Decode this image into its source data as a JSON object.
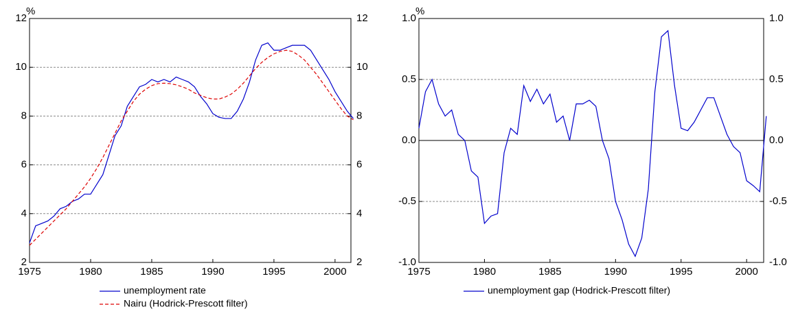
{
  "chart_data": [
    {
      "type": "line",
      "y_label": "%",
      "x": [
        1975,
        1975.5,
        1976,
        1976.5,
        1977,
        1977.5,
        1978,
        1978.5,
        1979,
        1979.5,
        1980,
        1980.5,
        1981,
        1981.5,
        1982,
        1982.5,
        1983,
        1983.5,
        1984,
        1984.5,
        1985,
        1985.5,
        1986,
        1986.5,
        1987,
        1987.5,
        1988,
        1988.5,
        1989,
        1989.5,
        1990,
        1990.5,
        1991,
        1991.5,
        1992,
        1992.5,
        1993,
        1993.5,
        1994,
        1994.5,
        1995,
        1995.5,
        1996,
        1996.5,
        1997,
        1997.5,
        1998,
        1998.5,
        1999,
        1999.5,
        2000,
        2000.5,
        2001,
        2001.5
      ],
      "series": [
        {
          "name": "unemployment rate",
          "color": "#0000cc",
          "line_style": "solid",
          "values": [
            2.8,
            3.5,
            3.6,
            3.7,
            3.9,
            4.2,
            4.3,
            4.5,
            4.6,
            4.8,
            4.8,
            5.2,
            5.6,
            6.4,
            7.2,
            7.6,
            8.4,
            8.8,
            9.2,
            9.3,
            9.5,
            9.4,
            9.5,
            9.4,
            9.6,
            9.5,
            9.4,
            9.2,
            8.8,
            8.5,
            8.1,
            7.95,
            7.9,
            7.9,
            8.2,
            8.7,
            9.4,
            10.3,
            10.9,
            11.0,
            10.7,
            10.7,
            10.8,
            10.9,
            10.9,
            10.9,
            10.7,
            10.3,
            9.9,
            9.5,
            9.0,
            8.6,
            8.2,
            7.9
          ]
        },
        {
          "name": "Nairu (Hodrick-Prescott filter)",
          "color": "#dd0000",
          "line_style": "dashed",
          "values": [
            2.7,
            2.95,
            3.2,
            3.45,
            3.7,
            3.95,
            4.2,
            4.5,
            4.8,
            5.1,
            5.45,
            5.85,
            6.3,
            6.8,
            7.3,
            7.8,
            8.2,
            8.6,
            8.9,
            9.1,
            9.25,
            9.33,
            9.35,
            9.33,
            9.28,
            9.2,
            9.1,
            8.95,
            8.85,
            8.75,
            8.7,
            8.7,
            8.78,
            8.9,
            9.1,
            9.35,
            9.65,
            9.95,
            10.2,
            10.4,
            10.55,
            10.65,
            10.7,
            10.65,
            10.5,
            10.3,
            10.0,
            9.7,
            9.35,
            9.0,
            8.65,
            8.3,
            8.0,
            7.85
          ]
        }
      ],
      "xlim": [
        1975,
        2001.3
      ],
      "xticks": [
        1975,
        1980,
        1985,
        1990,
        1995,
        2000
      ],
      "ylim": [
        2,
        12
      ],
      "yticks": [
        2,
        4,
        6,
        8,
        10,
        12
      ],
      "grid": true,
      "zero_line": false
    },
    {
      "type": "line",
      "y_label": "%",
      "x": [
        1975,
        1975.5,
        1976,
        1976.5,
        1977,
        1977.5,
        1978,
        1978.5,
        1979,
        1979.5,
        1980,
        1980.5,
        1981,
        1981.5,
        1982,
        1982.5,
        1983,
        1983.5,
        1984,
        1984.5,
        1985,
        1985.5,
        1986,
        1986.5,
        1987,
        1987.5,
        1988,
        1988.5,
        1989,
        1989.5,
        1990,
        1990.5,
        1991,
        1991.5,
        1992,
        1992.5,
        1993,
        1993.5,
        1994,
        1994.5,
        1995,
        1995.5,
        1996,
        1996.5,
        1997,
        1997.5,
        1998,
        1998.5,
        1999,
        1999.5,
        2000,
        2000.5,
        2001,
        2001.5
      ],
      "series": [
        {
          "name": "unemployment gap (Hodrick-Prescott filter)",
          "color": "#0000cc",
          "line_style": "solid",
          "values": [
            0.1,
            0.4,
            0.5,
            0.3,
            0.2,
            0.25,
            0.05,
            0.0,
            -0.25,
            -0.3,
            -0.68,
            -0.62,
            -0.6,
            -0.1,
            0.1,
            0.05,
            0.45,
            0.32,
            0.42,
            0.3,
            0.38,
            0.15,
            0.2,
            0.0,
            0.3,
            0.3,
            0.33,
            0.28,
            0.0,
            -0.15,
            -0.5,
            -0.65,
            -0.85,
            -0.95,
            -0.8,
            -0.4,
            0.4,
            0.85,
            0.9,
            0.45,
            0.1,
            0.08,
            0.15,
            0.25,
            0.35,
            0.35,
            0.2,
            0.05,
            -0.05,
            -0.1,
            -0.33,
            -0.37,
            -0.42,
            0.2
          ]
        }
      ],
      "xlim": [
        1975,
        2001.3
      ],
      "xticks": [
        1975,
        1980,
        1985,
        1990,
        1995,
        2000
      ],
      "ylim": [
        -1,
        1
      ],
      "yticks": [
        {
          "value": -1,
          "label": "-1.0"
        },
        -0.5,
        {
          "value": 0,
          "label": "0.0"
        },
        0.5,
        {
          "value": 1,
          "label": "1.0"
        }
      ],
      "grid": true,
      "zero_line": true
    }
  ]
}
